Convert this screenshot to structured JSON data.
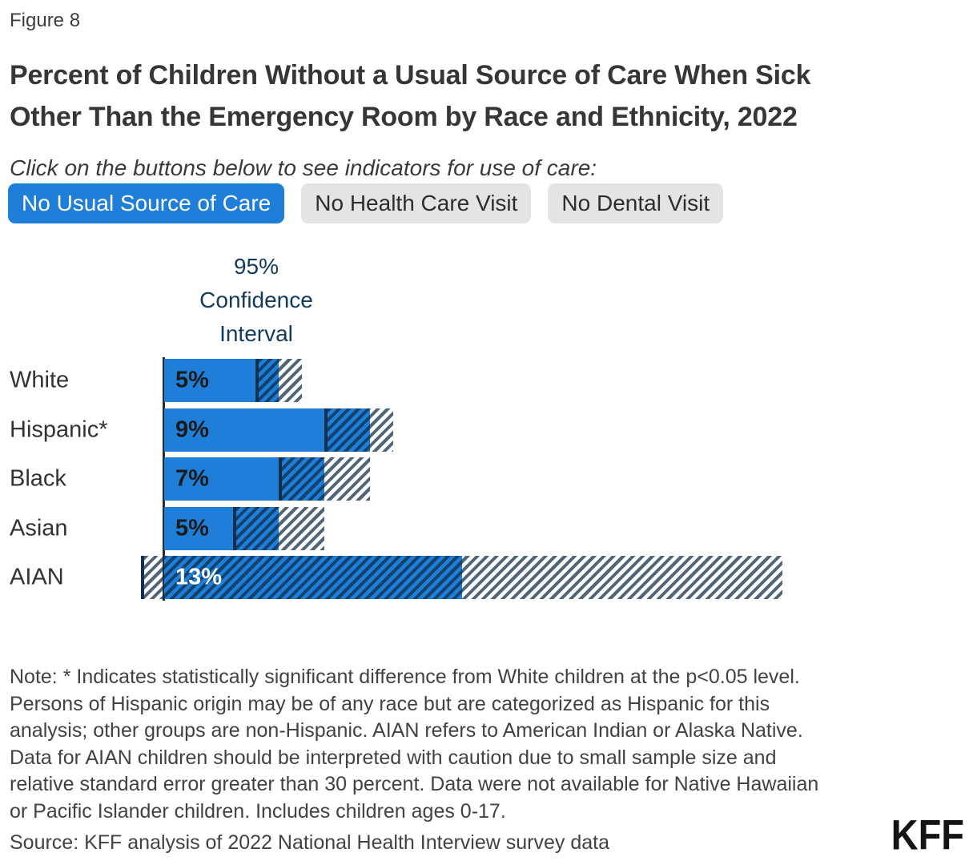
{
  "figure_label": "Figure 8",
  "title": {
    "line1": "Percent of Children Without a Usual Source of Care When Sick",
    "line2": "Other Than the Emergency Room by Race and Ethnicity, 2022"
  },
  "instruction": "Click on the buttons below to see indicators for use of care:",
  "buttons": [
    {
      "label": "No Usual Source of Care",
      "active": true
    },
    {
      "label": "No Health Care Visit",
      "active": false
    },
    {
      "label": "No Dental Visit",
      "active": false
    }
  ],
  "chart_data": {
    "type": "bar",
    "orientation": "horizontal",
    "unit": "percent",
    "ci_legend": "95%\nConfidence\nInterval",
    "xlim": [
      -1,
      27
    ],
    "grid": false,
    "categories": [
      "White",
      "Hispanic*",
      "Black",
      "Asian",
      "AIAN"
    ],
    "values": [
      5,
      9,
      7,
      5,
      13
    ],
    "rows": [
      {
        "label": "White",
        "value": 5,
        "value_label": "5%",
        "ci": [
          4,
          6
        ],
        "value_label_color": "#1a1a1a"
      },
      {
        "label": "Hispanic*",
        "value": 9,
        "value_label": "9%",
        "ci": [
          7,
          10
        ],
        "value_label_color": "#1a1a1a"
      },
      {
        "label": "Black",
        "value": 7,
        "value_label": "7%",
        "ci": [
          5,
          9
        ],
        "value_label_color": "#1a1a1a"
      },
      {
        "label": "Asian",
        "value": 5,
        "value_label": "5%",
        "ci": [
          3,
          7
        ],
        "value_label_color": "#1a1a1a"
      },
      {
        "label": "AIAN",
        "value": 13,
        "value_label": "13%",
        "ci": [
          -1,
          27
        ],
        "value_label_color": "#ffffff"
      }
    ],
    "colors": {
      "bar": "#1e7ed8",
      "hatch_line": "#0d2a45",
      "ci_edge": "#11304f",
      "axis": "#2b2b2b"
    }
  },
  "note": {
    "lines": [
      "Note: * Indicates statistically significant difference from White children at the p<0.05 level.",
      "Persons of Hispanic origin may be of any race but are categorized as Hispanic for this",
      "analysis; other groups are non-Hispanic. AIAN refers to American Indian or Alaska Native.",
      "Data for AIAN children should be interpreted with caution due to small sample size and",
      "relative standard error greater than 30 percent. Data were not available for Native Hawaiian",
      "or Pacific Islander children. Includes children ages 0-17."
    ]
  },
  "source": "Source: KFF analysis of 2022 National Health Interview survey data",
  "logo": "KFF"
}
